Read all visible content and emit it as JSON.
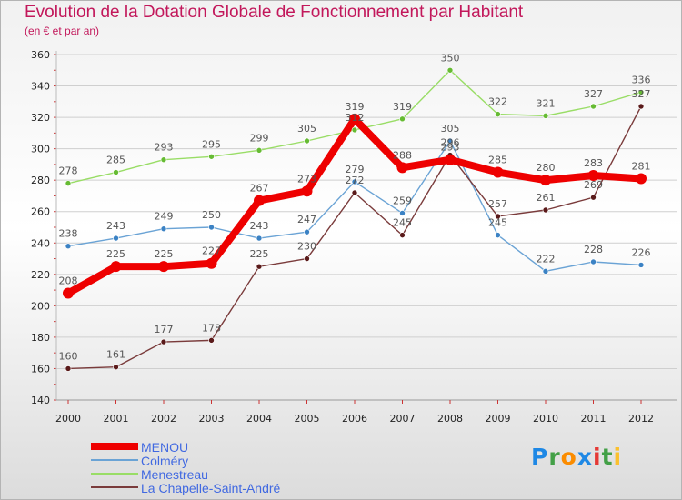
{
  "header": {
    "title": "Evolution de la Dotation Globale de Fonctionnement par Habitant",
    "subtitle": "(en € et par an)"
  },
  "brand": {
    "letters": [
      "P",
      "r",
      "o",
      "x",
      "i",
      "t",
      "i"
    ]
  },
  "colors": {
    "title": "#c2185b",
    "grid": "#cfcfcf",
    "axis_text": "#222222",
    "label_text": "#555555",
    "legend_text": "#4169e1"
  },
  "chart_data": {
    "type": "line",
    "title": "Evolution de la Dotation Globale de Fonctionnement par Habitant",
    "subtitle": "(en € et par an)",
    "xlabel": "",
    "ylabel": "",
    "ylim": [
      140,
      360
    ],
    "yticks": [
      140,
      160,
      180,
      200,
      220,
      240,
      260,
      280,
      300,
      320,
      340,
      360
    ],
    "grid": true,
    "legend_position": "bottom-left",
    "x": [
      2000,
      2001,
      2002,
      2003,
      2004,
      2005,
      2006,
      2007,
      2008,
      2009,
      2010,
      2011,
      2012
    ],
    "series": [
      {
        "name": "Menestreau",
        "color": "#99dd66",
        "marker": "#66bb33",
        "values": [
          278,
          285,
          293,
          295,
          299,
          305,
          312,
          319,
          350,
          322,
          321,
          327,
          336
        ],
        "labels": [
          "278",
          "285",
          "293",
          "295",
          "299",
          "305",
          "312",
          "319",
          "350",
          "322",
          "321",
          "327",
          "336"
        ]
      },
      {
        "name": "Colméry",
        "color": "#6aa3d5",
        "marker": "#3b82c4",
        "values": [
          238,
          243,
          249,
          250,
          243,
          247,
          279,
          259,
          305,
          245,
          222,
          228,
          226
        ],
        "labels": [
          "238",
          "243",
          "249",
          "250",
          "243",
          "247",
          "279",
          "259",
          "305",
          "245",
          "222",
          "228",
          "226"
        ]
      },
      {
        "name": "La Chapelle-Saint-André",
        "color": "#7a3b3b",
        "marker": "#5a1a1a",
        "values": [
          160,
          161,
          177,
          178,
          225,
          230,
          272,
          245,
          296,
          257,
          261,
          269,
          327
        ],
        "labels": [
          "160",
          "161",
          "177",
          "178",
          "225",
          "230",
          "272",
          "245",
          "296",
          "257",
          "261",
          "269",
          "327"
        ]
      },
      {
        "name": "MENOU",
        "color": "#ee0000",
        "marker": "#ee0000",
        "values": [
          208,
          225,
          225,
          227,
          267,
          273,
          319,
          288,
          293,
          285,
          280,
          283,
          281
        ],
        "labels": [
          "208",
          "225",
          "225",
          "227",
          "267",
          "273",
          "319",
          "288",
          "293",
          "285",
          "280",
          "283",
          "281"
        ]
      }
    ],
    "legend": [
      "MENOU",
      "Colméry",
      "Menestreau",
      "La Chapelle-Saint-André"
    ]
  }
}
